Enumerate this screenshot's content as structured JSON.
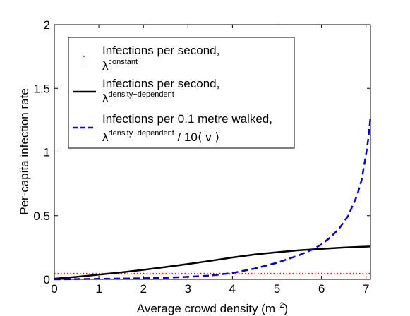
{
  "chart_data": {
    "type": "line",
    "title": "",
    "xlabel": {
      "text": "Average crowd density (m",
      "sup": "−2",
      "close": ")"
    },
    "ylabel": "Per-capita infection rate",
    "xlim": [
      0,
      7.1
    ],
    "ylim": [
      0,
      2
    ],
    "xticks": [
      0,
      1,
      2,
      3,
      4,
      5,
      6,
      7
    ],
    "xtick_labels": [
      "0",
      "1",
      "2",
      "3",
      "4",
      "5",
      "6",
      "7"
    ],
    "yticks": [
      0,
      0.5,
      1,
      1.5,
      2
    ],
    "ytick_labels": [
      "0",
      "0.5",
      "1",
      "1.5",
      "2"
    ],
    "grid": false,
    "legend_placement": "top-left",
    "series": [
      {
        "name_line1": "Infections per second,",
        "name_sym": "λ",
        "name_sup": "constant",
        "name_suffix": "",
        "color": "#ff0000",
        "style": "dotted",
        "x": [
          0,
          7.1
        ],
        "y": [
          0.045,
          0.045
        ]
      },
      {
        "name_line1": "Infections per second,",
        "name_sym": "λ",
        "name_sup": "density−dependent",
        "name_suffix": "",
        "color": "#000000",
        "style": "solid",
        "x": [
          0,
          0.25,
          0.5,
          0.75,
          1,
          1.5,
          2,
          2.5,
          3,
          3.5,
          4,
          4.5,
          5,
          5.5,
          6,
          6.5,
          7,
          7.1
        ],
        "y": [
          0.005,
          0.012,
          0.02,
          0.028,
          0.037,
          0.055,
          0.075,
          0.097,
          0.12,
          0.145,
          0.172,
          0.195,
          0.213,
          0.228,
          0.24,
          0.25,
          0.257,
          0.258
        ]
      },
      {
        "name_line1": "Infections per 0.1 metre walked,",
        "name_sym": "λ",
        "name_sup": "density−dependent",
        "name_suffix": " / 10⟨ v ⟩",
        "color": "#0000ee",
        "style": "dashed",
        "x": [
          0,
          0.5,
          1,
          1.5,
          2,
          2.5,
          3,
          3.5,
          4,
          4.5,
          5,
          5.5,
          5.8,
          6,
          6.2,
          6.4,
          6.6,
          6.8,
          6.9,
          7.0,
          7.05,
          7.1
        ],
        "y": [
          0,
          0.002,
          0.004,
          0.006,
          0.009,
          0.013,
          0.02,
          0.03,
          0.05,
          0.085,
          0.13,
          0.19,
          0.235,
          0.275,
          0.33,
          0.4,
          0.5,
          0.66,
          0.78,
          0.98,
          1.1,
          1.27
        ]
      }
    ]
  }
}
